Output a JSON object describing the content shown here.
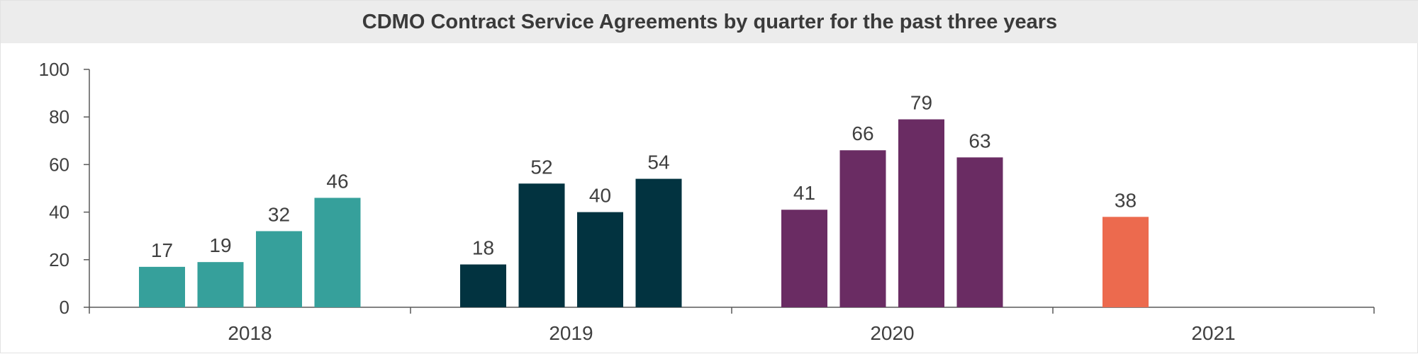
{
  "chart_data": {
    "type": "bar",
    "title": "CDMO Contract Service Agreements by quarter for the past three years",
    "xlabel": "",
    "ylabel": "",
    "ylim": [
      0,
      100
    ],
    "yticks": [
      0,
      20,
      40,
      60,
      80,
      100
    ],
    "grid": false,
    "legend": "none",
    "categories": [
      "2018",
      "2019",
      "2020",
      "2021"
    ],
    "groups": [
      {
        "category": "2018",
        "color": "#36A09B",
        "values": [
          17,
          19,
          32,
          46
        ]
      },
      {
        "category": "2019",
        "color": "#023340",
        "values": [
          18,
          52,
          40,
          54
        ]
      },
      {
        "category": "2020",
        "color": "#6A2C63",
        "values": [
          41,
          66,
          79,
          63
        ]
      },
      {
        "category": "2021",
        "color": "#EC6A4E",
        "values": [
          38
        ]
      }
    ]
  }
}
